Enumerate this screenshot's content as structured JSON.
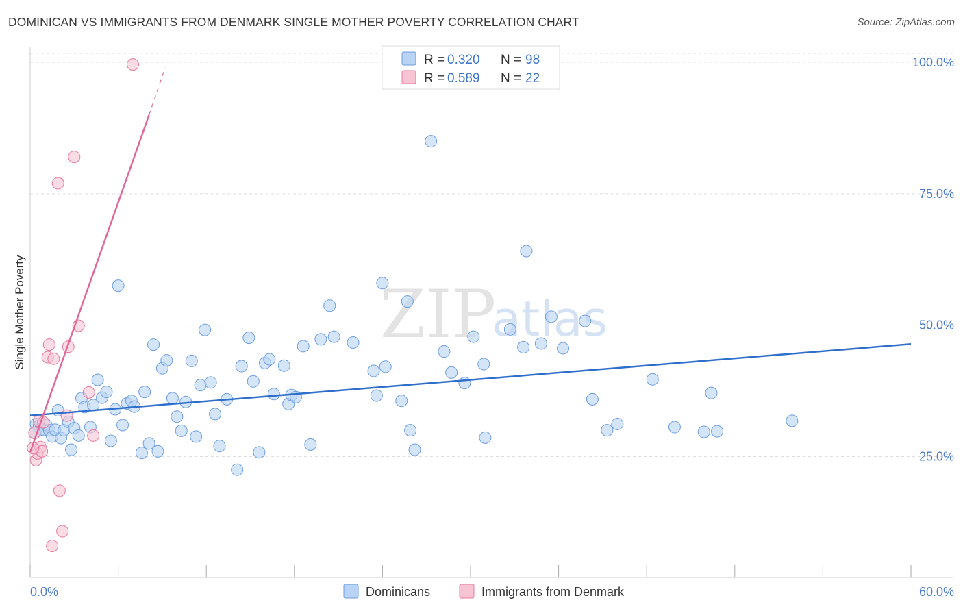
{
  "header": {
    "title": "DOMINICAN VS IMMIGRANTS FROM DENMARK SINGLE MOTHER POVERTY CORRELATION CHART",
    "source": "Source: ZipAtlas.com"
  },
  "colors": {
    "blue_fill": "#b9d3f4",
    "blue_stroke": "#6c9ee0",
    "blue_line": "#2e6fcc",
    "pink_fill": "#f7c4d3",
    "pink_stroke": "#e8799f",
    "pink_line": "#e0679a",
    "grid": "#dddddd",
    "axis_label": "#4a7cc9"
  },
  "watermark": {
    "zip": "ZIP",
    "atlas": "atlas"
  },
  "legend": {
    "rows": [
      {
        "r_label": "R =",
        "r_value": "0.320",
        "n_label": "N =",
        "n_value": "98"
      },
      {
        "r_label": "R =",
        "r_value": "0.589",
        "n_label": "N =",
        "n_value": "22"
      }
    ]
  },
  "bottom_legend": [
    {
      "label": "Dominicans"
    },
    {
      "label": "Immigrants from Denmark"
    }
  ],
  "chart_data": {
    "type": "scatter",
    "title": "DOMINICAN VS IMMIGRANTS FROM DENMARK SINGLE MOTHER POVERTY CORRELATION CHART",
    "xlabel": "",
    "ylabel": "Single Mother Poverty",
    "xlim": [
      0,
      60
    ],
    "ylim": [
      2,
      103
    ],
    "x_tick_labels": [
      "0.0%",
      "60.0%"
    ],
    "y_ticks": [
      25,
      50,
      75,
      100
    ],
    "y_tick_labels": [
      "25.0%",
      "50.0%",
      "75.0%",
      "100.0%"
    ],
    "grid": true,
    "series": [
      {
        "name": "Dominicans",
        "r": 0.32,
        "n": 98,
        "trendline": {
          "x": [
            0,
            60
          ],
          "y": [
            32.8,
            46.4
          ]
        },
        "points": [
          [
            0.4,
            31.2
          ],
          [
            0.6,
            30.8
          ],
          [
            0.7,
            30.2
          ],
          [
            0.9,
            30.1
          ],
          [
            1.1,
            31.0
          ],
          [
            1.3,
            30.0
          ],
          [
            1.5,
            28.8
          ],
          [
            1.7,
            30.1
          ],
          [
            1.9,
            33.8
          ],
          [
            2.1,
            28.5
          ],
          [
            2.3,
            30.0
          ],
          [
            2.6,
            31.6
          ],
          [
            2.8,
            26.3
          ],
          [
            3.0,
            30.4
          ],
          [
            3.3,
            29.0
          ],
          [
            3.5,
            36.1
          ],
          [
            3.7,
            34.4
          ],
          [
            4.1,
            30.6
          ],
          [
            4.3,
            34.8
          ],
          [
            4.6,
            39.6
          ],
          [
            4.9,
            36.2
          ],
          [
            5.2,
            37.3
          ],
          [
            5.5,
            28.0
          ],
          [
            5.8,
            34.0
          ],
          [
            6.0,
            57.5
          ],
          [
            6.3,
            31.0
          ],
          [
            6.6,
            35.1
          ],
          [
            6.9,
            35.6
          ],
          [
            7.1,
            34.5
          ],
          [
            7.6,
            25.7
          ],
          [
            7.8,
            37.3
          ],
          [
            8.1,
            27.5
          ],
          [
            8.4,
            46.3
          ],
          [
            8.7,
            26.0
          ],
          [
            9.0,
            41.8
          ],
          [
            9.3,
            43.3
          ],
          [
            9.7,
            36.1
          ],
          [
            10.0,
            32.6
          ],
          [
            10.3,
            29.9
          ],
          [
            10.6,
            35.4
          ],
          [
            11.0,
            43.2
          ],
          [
            11.3,
            28.8
          ],
          [
            11.6,
            38.6
          ],
          [
            11.9,
            49.1
          ],
          [
            12.3,
            39.1
          ],
          [
            12.6,
            33.1
          ],
          [
            12.9,
            27.0
          ],
          [
            13.4,
            35.9
          ],
          [
            14.1,
            22.5
          ],
          [
            14.4,
            42.2
          ],
          [
            14.9,
            47.6
          ],
          [
            15.2,
            39.3
          ],
          [
            15.6,
            25.8
          ],
          [
            16.0,
            42.8
          ],
          [
            16.3,
            43.5
          ],
          [
            16.6,
            36.9
          ],
          [
            17.3,
            42.3
          ],
          [
            17.6,
            35.0
          ],
          [
            17.8,
            36.7
          ],
          [
            18.1,
            36.3
          ],
          [
            18.6,
            46.0
          ],
          [
            19.1,
            27.3
          ],
          [
            19.8,
            47.3
          ],
          [
            20.4,
            53.7
          ],
          [
            20.7,
            47.8
          ],
          [
            22.0,
            46.7
          ],
          [
            23.4,
            41.3
          ],
          [
            23.6,
            36.6
          ],
          [
            24.0,
            58.0
          ],
          [
            24.2,
            42.1
          ],
          [
            25.3,
            35.6
          ],
          [
            25.7,
            54.5
          ],
          [
            25.9,
            30.0
          ],
          [
            26.2,
            26.3
          ],
          [
            27.3,
            85.0
          ],
          [
            28.2,
            45.0
          ],
          [
            28.7,
            41.0
          ],
          [
            29.6,
            39.0
          ],
          [
            30.2,
            47.8
          ],
          [
            30.9,
            42.6
          ],
          [
            31.0,
            28.6
          ],
          [
            32.7,
            49.2
          ],
          [
            33.8,
            64.1
          ],
          [
            33.6,
            45.8
          ],
          [
            34.8,
            46.5
          ],
          [
            35.5,
            51.6
          ],
          [
            36.3,
            45.6
          ],
          [
            37.8,
            50.8
          ],
          [
            38.3,
            35.9
          ],
          [
            39.3,
            30.0
          ],
          [
            40.0,
            31.2
          ],
          [
            42.4,
            39.7
          ],
          [
            43.9,
            30.6
          ],
          [
            45.9,
            29.7
          ],
          [
            46.4,
            37.1
          ],
          [
            46.8,
            29.8
          ],
          [
            51.9,
            31.8
          ],
          [
            0.3,
            29.5
          ]
        ]
      },
      {
        "name": "Immigrants from Denmark",
        "r": 0.589,
        "n": 22,
        "trendline": {
          "x": [
            0.0,
            8.1
          ],
          "y": [
            25.8,
            90.0
          ]
        },
        "trendline_dashed": {
          "x": [
            8.1,
            9.2
          ],
          "y": [
            90.0,
            99.0
          ]
        },
        "points": [
          [
            0.3,
            29.5
          ],
          [
            0.4,
            24.3
          ],
          [
            0.5,
            25.6
          ],
          [
            0.6,
            31.8
          ],
          [
            0.7,
            26.8
          ],
          [
            0.8,
            26.0
          ],
          [
            0.9,
            31.5
          ],
          [
            1.2,
            43.9
          ],
          [
            1.3,
            46.3
          ],
          [
            1.6,
            43.6
          ],
          [
            1.9,
            77.0
          ],
          [
            2.0,
            18.5
          ],
          [
            2.2,
            10.8
          ],
          [
            2.5,
            32.8
          ],
          [
            2.6,
            45.9
          ],
          [
            3.0,
            82.0
          ],
          [
            3.3,
            49.9
          ],
          [
            4.0,
            37.2
          ],
          [
            4.3,
            29.0
          ],
          [
            1.5,
            8.0
          ],
          [
            7.0,
            99.6
          ],
          [
            0.2,
            26.6
          ]
        ]
      }
    ]
  }
}
